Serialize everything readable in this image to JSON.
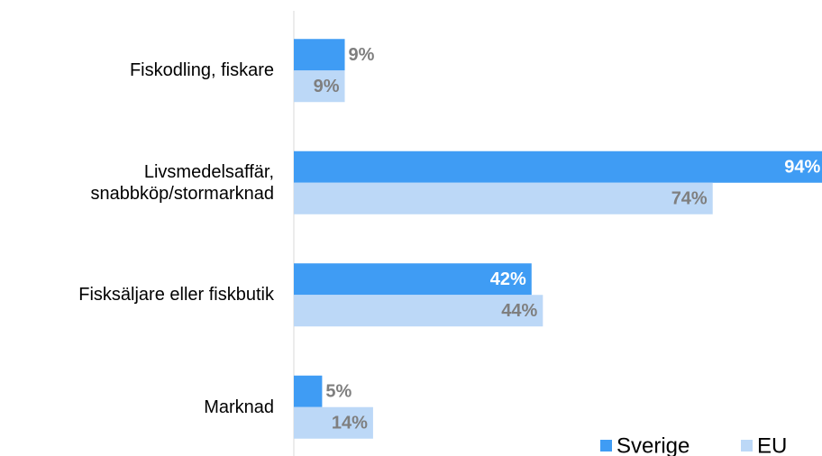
{
  "chart_data": {
    "type": "hbar",
    "categories": [
      "Fiskodling, fiskare",
      "Livsmedelsaffär, snabbköp/stormarknad",
      "Fisksäljare eller fiskbutik",
      "Marknad"
    ],
    "series": [
      {
        "name": "Sverige",
        "color": "#3f9cf4",
        "values": [
          9,
          94,
          42,
          5
        ],
        "value_labels": [
          "9%",
          "94%",
          "42%",
          "5%"
        ]
      },
      {
        "name": "EU",
        "color": "#bcd8f7",
        "values": [
          9,
          74,
          44,
          14
        ],
        "value_labels": [
          "9%",
          "74%",
          "44%",
          "14%"
        ]
      }
    ],
    "xlim": [
      0,
      100
    ],
    "legend": "bottom-right"
  }
}
